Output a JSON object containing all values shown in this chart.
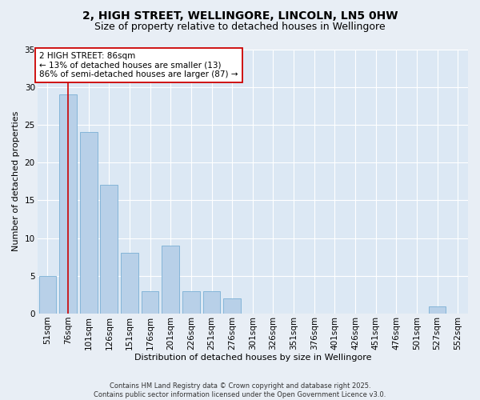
{
  "title": "2, HIGH STREET, WELLINGORE, LINCOLN, LN5 0HW",
  "subtitle": "Size of property relative to detached houses in Wellingore",
  "xlabel": "Distribution of detached houses by size in Wellingore",
  "ylabel": "Number of detached properties",
  "categories": [
    "51sqm",
    "76sqm",
    "101sqm",
    "126sqm",
    "151sqm",
    "176sqm",
    "201sqm",
    "226sqm",
    "251sqm",
    "276sqm",
    "301sqm",
    "326sqm",
    "351sqm",
    "376sqm",
    "401sqm",
    "426sqm",
    "451sqm",
    "476sqm",
    "501sqm",
    "527sqm",
    "552sqm"
  ],
  "values": [
    5,
    29,
    24,
    17,
    8,
    3,
    9,
    3,
    3,
    2,
    0,
    0,
    0,
    0,
    0,
    0,
    0,
    0,
    0,
    1,
    0
  ],
  "bar_color": "#b8d0e8",
  "bar_edge_color": "#7aafd4",
  "vline_color": "#cc0000",
  "vline_pos": 1.5,
  "annotation_text": "2 HIGH STREET: 86sqm\n← 13% of detached houses are smaller (13)\n86% of semi-detached houses are larger (87) →",
  "annotation_box_color": "#ffffff",
  "annotation_box_edge": "#cc0000",
  "bg_color": "#e8eef5",
  "plot_bg_color": "#dce8f4",
  "footer": "Contains HM Land Registry data © Crown copyright and database right 2025.\nContains public sector information licensed under the Open Government Licence v3.0.",
  "ylim": [
    0,
    35
  ],
  "yticks": [
    0,
    5,
    10,
    15,
    20,
    25,
    30,
    35
  ],
  "grid_color": "#ffffff",
  "title_fontsize": 10,
  "subtitle_fontsize": 9,
  "axis_label_fontsize": 8,
  "tick_fontsize": 7.5,
  "annot_fontsize": 7.5,
  "footer_fontsize": 6
}
